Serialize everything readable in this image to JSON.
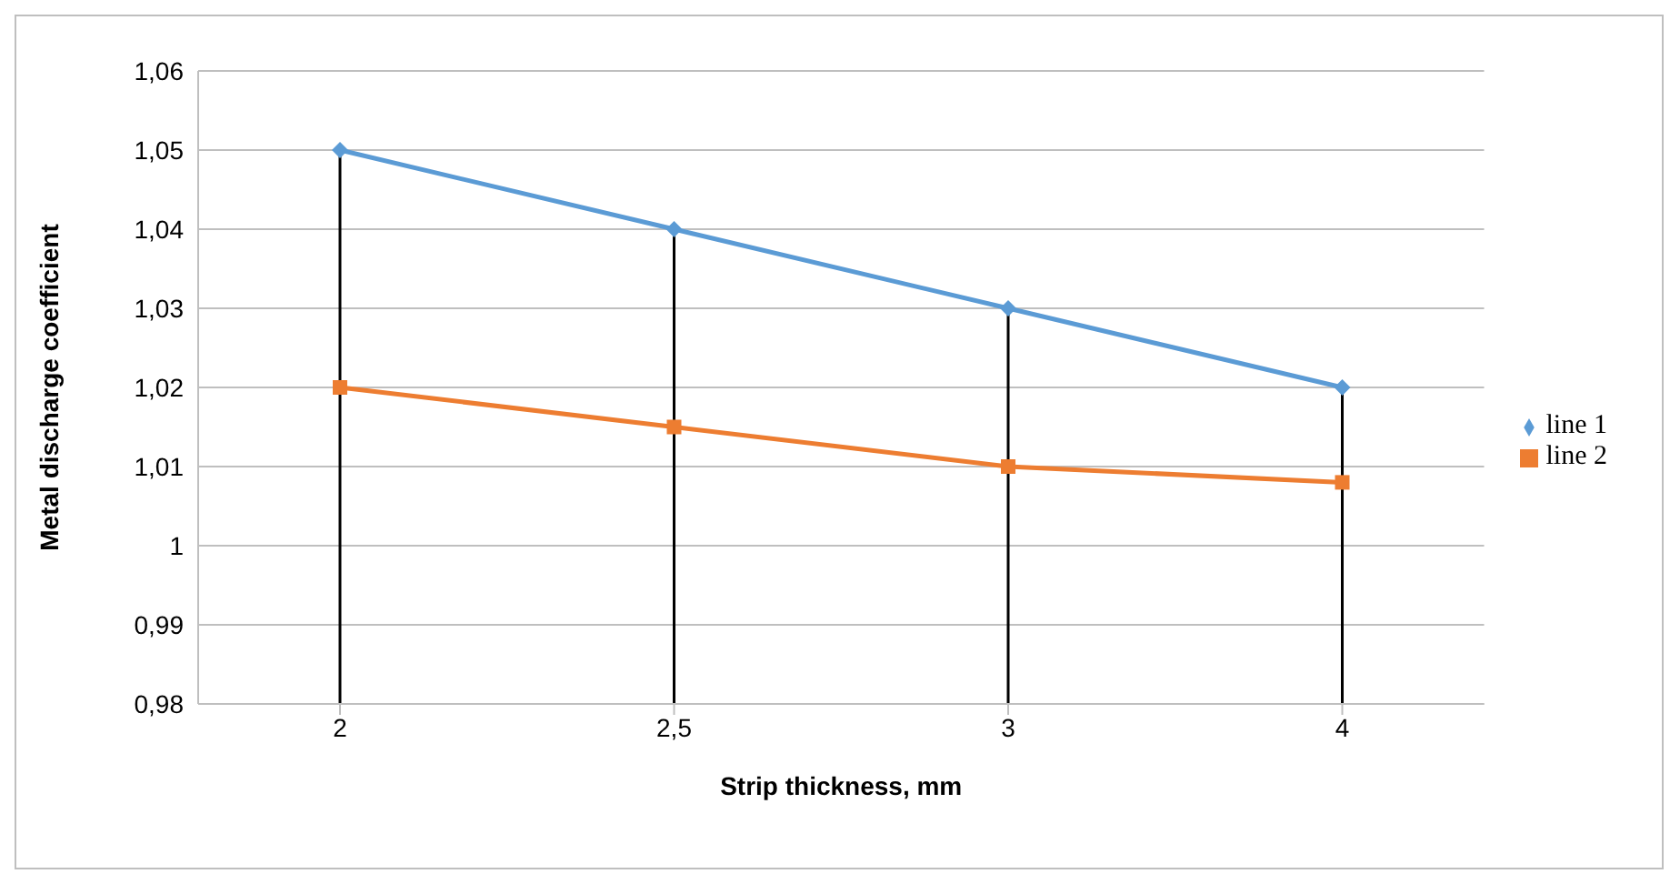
{
  "chart_data": {
    "type": "line",
    "xlabel": "Strip thickness, mm",
    "ylabel": "Metal discharge coefficient",
    "categories": [
      "2",
      "2,5",
      "3",
      "4"
    ],
    "series": [
      {
        "name": "line 1",
        "color": "#5b9bd5",
        "marker": "diamond",
        "values": [
          1.05,
          1.04,
          1.03,
          1.02
        ]
      },
      {
        "name": "line 2",
        "color": "#ed7d31",
        "marker": "square",
        "values": [
          1.02,
          1.015,
          1.01,
          1.008
        ]
      }
    ],
    "ylim": [
      0.98,
      1.06
    ],
    "yticks": [
      {
        "value": 0.98,
        "label": "0,98"
      },
      {
        "value": 0.99,
        "label": "0,99"
      },
      1,
      {
        "value": 1.01,
        "label": "1,01"
      },
      {
        "value": 1.02,
        "label": "1,02"
      },
      {
        "value": 1.03,
        "label": "1,03"
      },
      {
        "value": 1.04,
        "label": "1,04"
      },
      {
        "value": 1.05,
        "label": "1,05"
      },
      {
        "value": 1.06,
        "label": "1,06"
      }
    ],
    "ref_lines": [
      {
        "axis": "x",
        "value": "2",
        "color": "#000000"
      },
      {
        "axis": "x",
        "value": "2,5",
        "color": "#000000"
      },
      {
        "axis": "x",
        "value": "3",
        "color": "#000000"
      },
      {
        "axis": "x",
        "value": "4",
        "color": "#000000"
      }
    ],
    "grid": "y",
    "legend": "right",
    "line_style": "solid"
  }
}
